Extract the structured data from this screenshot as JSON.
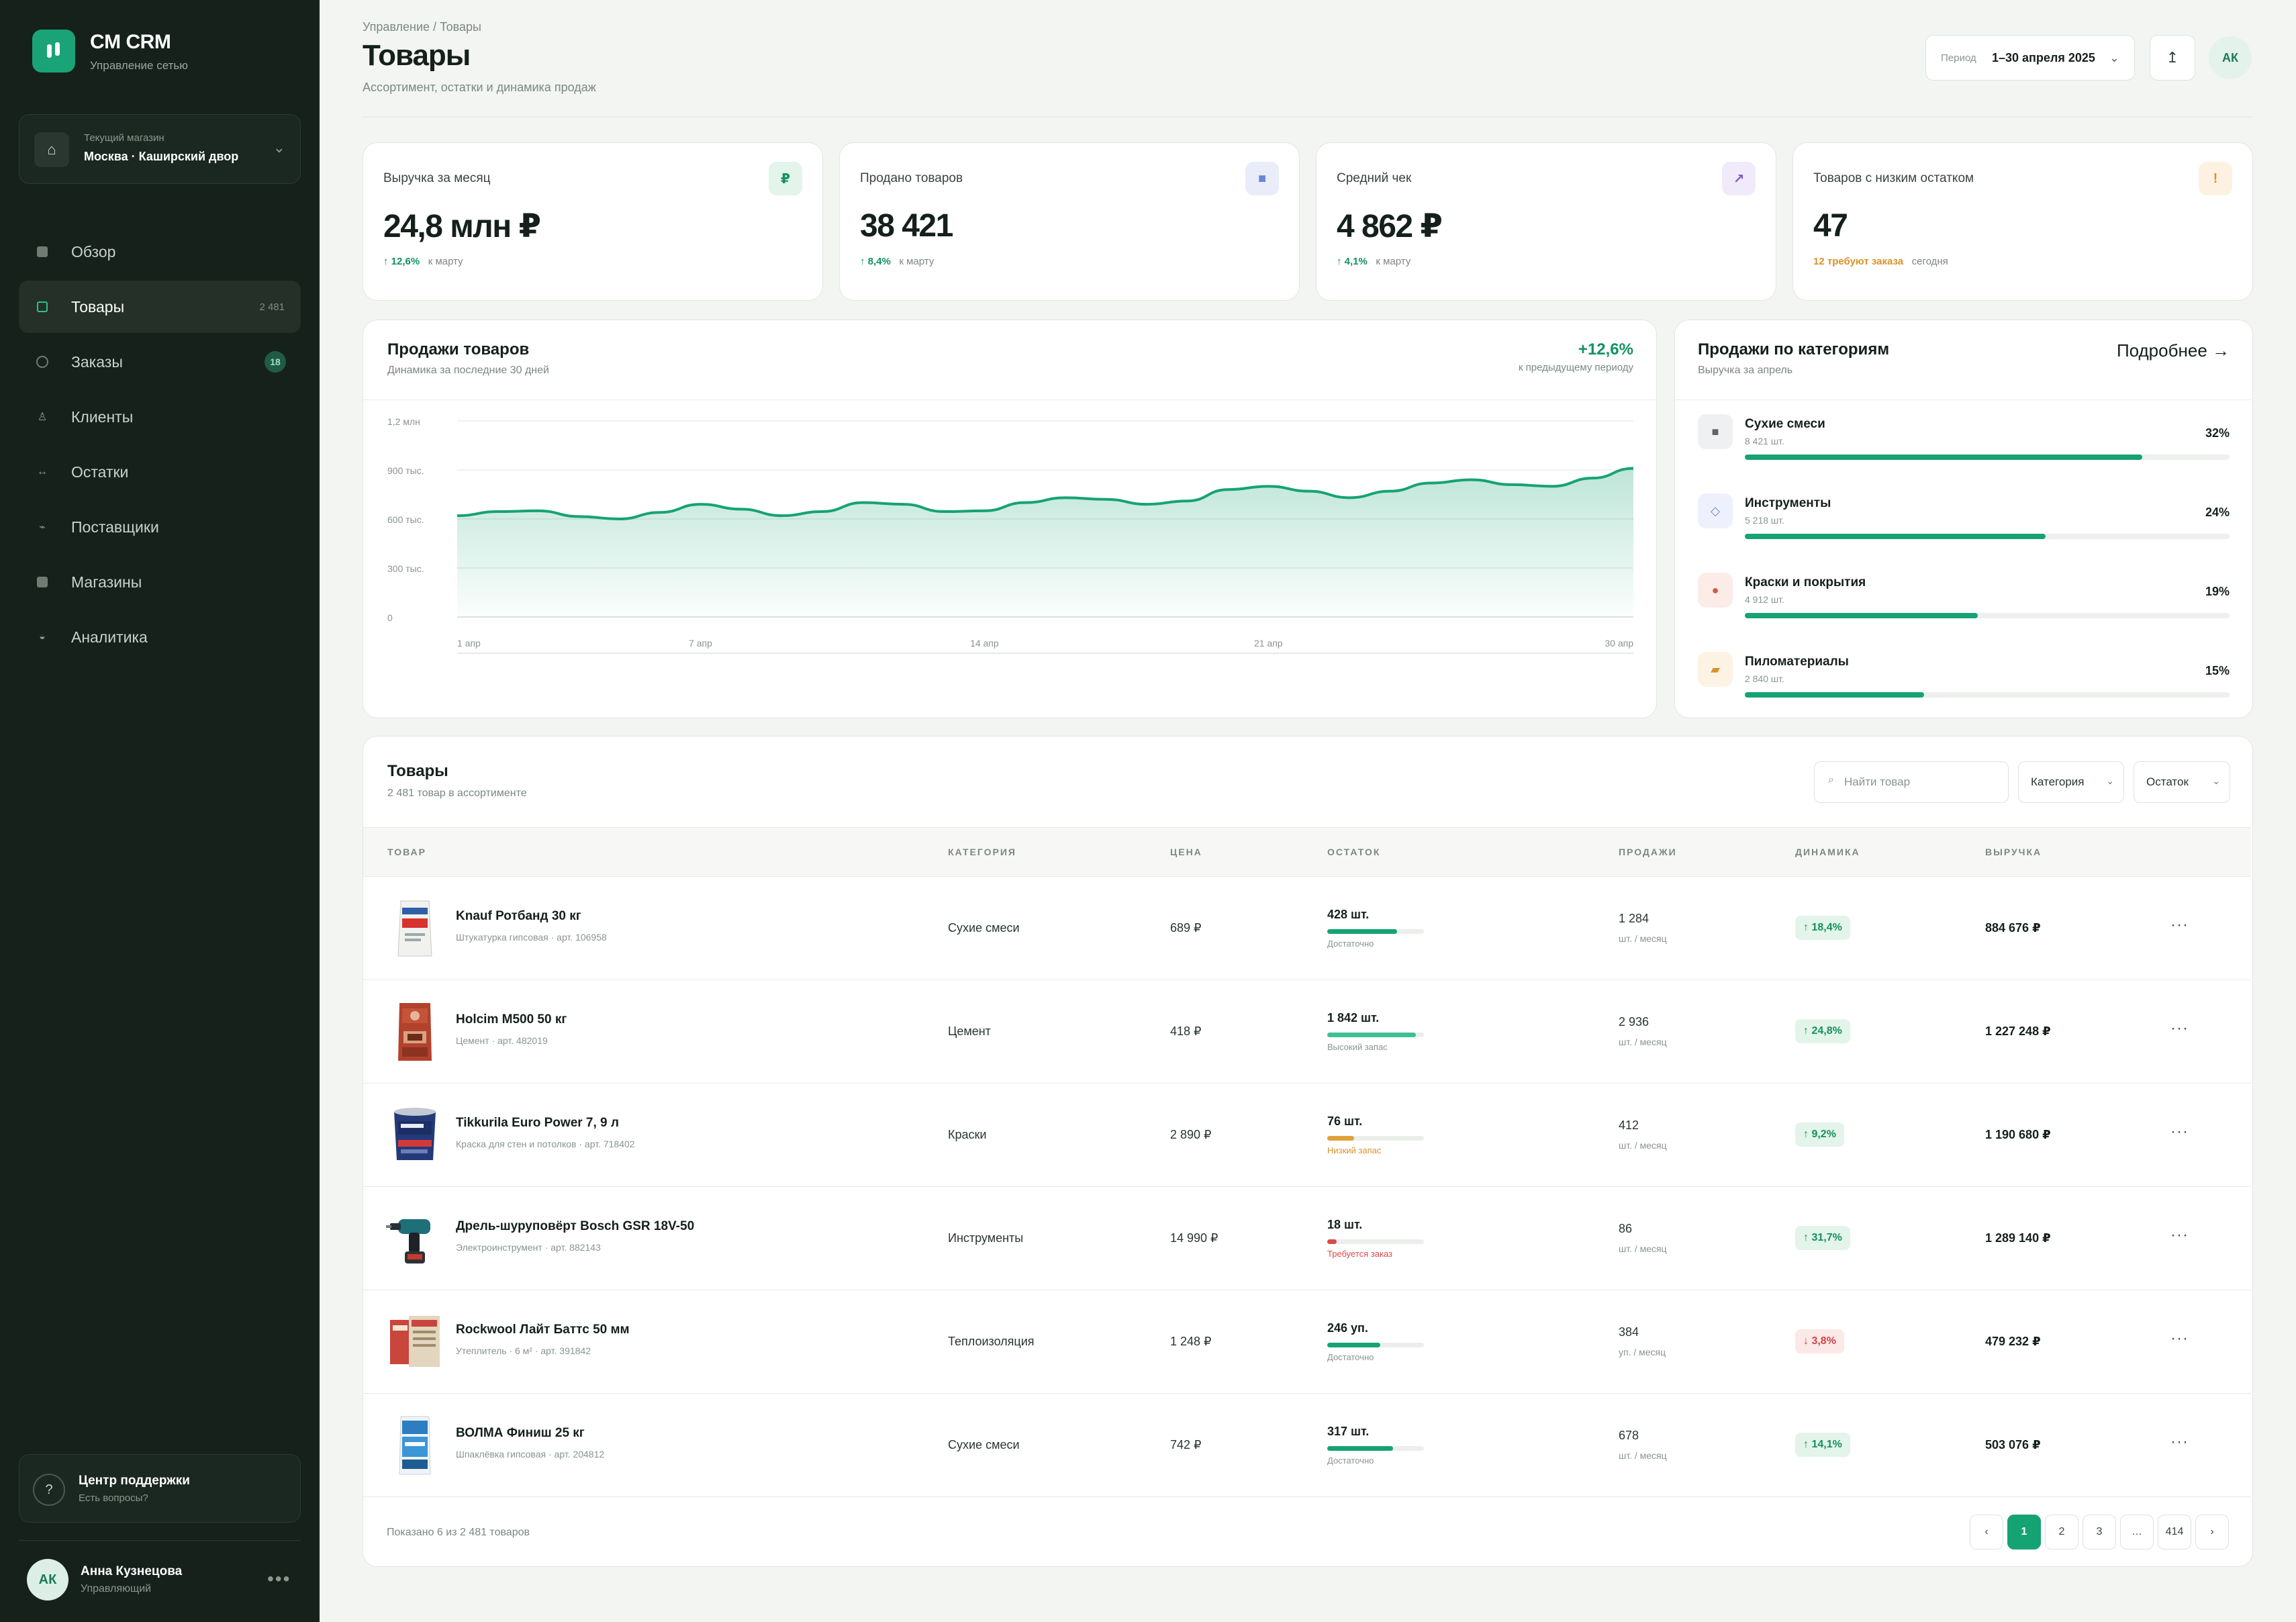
{
  "app": {
    "name": "CM CRM",
    "subtitle": "Управление сетью"
  },
  "store": {
    "label": "Текущий магазин",
    "value": "Москва · Каширский двор"
  },
  "nav": [
    {
      "label": "Обзор"
    },
    {
      "label": "Товары",
      "count": "2 481"
    },
    {
      "label": "Заказы",
      "badge": "18"
    },
    {
      "label": "Клиенты"
    },
    {
      "label": "Остатки"
    },
    {
      "label": "Поставщики"
    },
    {
      "label": "Магазины"
    },
    {
      "label": "Аналитика"
    }
  ],
  "support": {
    "title": "Центр поддержки",
    "subtitle": "Есть вопросы?"
  },
  "user": {
    "initials": "АК",
    "name": "Анна Кузнецова",
    "role": "Управляющий"
  },
  "header": {
    "breadcrumb": "Управление / Товары",
    "title": "Товары",
    "subtitle": "Ассортимент, остатки и динамика продаж",
    "period_label": "Период",
    "period_value": "1–30 апреля 2025",
    "avatar": "АК"
  },
  "kpis": [
    {
      "label": "Выручка за месяц",
      "value": "24,8 млн ₽",
      "delta": "12,6%",
      "delta_note": "к марту",
      "icon": "₽",
      "accent": "#12925f",
      "icon_bg": "#e3f4ea"
    },
    {
      "label": "Продано товаров",
      "value": "38 421",
      "delta": "8,4%",
      "delta_note": "к марту",
      "icon": "■",
      "accent": "#6c84d8",
      "icon_bg": "#e9edfa"
    },
    {
      "label": "Средний чек",
      "value": "4 862 ₽",
      "delta": "4,1%",
      "delta_note": "к марту",
      "icon": "↗",
      "accent": "#7e5cc7",
      "icon_bg": "#f0eafa"
    },
    {
      "label": "Товаров с низким остатком",
      "value": "47",
      "delta": "12 требуют заказа",
      "delta_note": "сегодня",
      "icon": "!",
      "accent": "#d9922b",
      "icon_bg": "#fdf1e2"
    }
  ],
  "sales_chart": {
    "title": "Продажи товаров",
    "subtitle": "Динамика за последние 30 дней",
    "change": "+12,6%",
    "change_note": "к предыдущему периоду"
  },
  "chart_data": {
    "type": "area",
    "title": "Продажи товаров",
    "yticks": [
      "1,2 млн",
      "900 тыс.",
      "600 тыс.",
      "300 тыс.",
      "0"
    ],
    "xticks": [
      "1 апр",
      "7 апр",
      "14 апр",
      "21 апр",
      "30 апр"
    ],
    "ylim": [
      0,
      1200000
    ],
    "x": [
      1,
      2,
      3,
      4,
      5,
      6,
      7,
      8,
      9,
      10,
      11,
      12,
      13,
      14,
      15,
      16,
      17,
      18,
      19,
      20,
      21,
      22,
      23,
      24,
      25,
      26,
      27,
      28,
      29,
      30
    ],
    "values": [
      620000,
      645000,
      650000,
      615000,
      600000,
      640000,
      690000,
      660000,
      620000,
      645000,
      700000,
      690000,
      645000,
      650000,
      700000,
      730000,
      720000,
      690000,
      710000,
      780000,
      800000,
      770000,
      730000,
      770000,
      820000,
      840000,
      810000,
      800000,
      850000,
      910000
    ],
    "grid": true,
    "color": "#16a373"
  },
  "categories": {
    "title": "Продажи по категориям",
    "subtitle": "Выручка за апрель",
    "more": "Подробнее →",
    "items": [
      {
        "name": "Сухие смеси",
        "qty": "8 421 шт.",
        "pct": "32%",
        "fill": 0.82,
        "icon": "■",
        "icon_color": "#5b6573",
        "icon_bg": "#eef0f2"
      },
      {
        "name": "Инструменты",
        "qty": "5 218 шт.",
        "pct": "24%",
        "fill": 0.62,
        "icon": "◇",
        "icon_color": "#6c84d8",
        "icon_bg": "#eef1fb"
      },
      {
        "name": "Краски и покрытия",
        "qty": "4 912 шт.",
        "pct": "19%",
        "fill": 0.48,
        "icon": "●",
        "icon_color": "#c75f43",
        "icon_bg": "#fbece7"
      },
      {
        "name": "Пиломатериалы",
        "qty": "2 840 шт.",
        "pct": "15%",
        "fill": 0.37,
        "icon": "▰",
        "icon_color": "#d9922b",
        "icon_bg": "#fdf3e4"
      }
    ]
  },
  "products": {
    "title": "Товары",
    "subtitle": "2 481 товар в ассортименте",
    "search_placeholder": "Найти товар",
    "filter_category": "Категория",
    "filter_stock": "Остаток",
    "columns": [
      "ТОВАР",
      "КАТЕГОРИЯ",
      "ЦЕНА",
      "ОСТАТОК",
      "ПРОДАЖИ",
      "ДИНАМИКА",
      "ВЫРУЧКА"
    ],
    "rows": [
      {
        "name": "Knauf Ротбанд 30 кг",
        "sub": "Штукатурка гипсовая · арт. 106958",
        "category": "Сухие смеси",
        "price": "689 ₽",
        "stock": "428 шт.",
        "stock_fill": 0.72,
        "stock_color": "#16a373",
        "stock_note": "Достаточно",
        "stock_note_color": "#8a948f",
        "sales": "1 284",
        "sales_unit": "шт. / месяц",
        "dyn": "↑ 18,4%",
        "dyn_type": "pos",
        "revenue": "884 676 ₽",
        "img": "bag-knauf"
      },
      {
        "name": "Holcim M500 50 кг",
        "sub": "Цемент · арт. 482019",
        "category": "Цемент",
        "price": "418 ₽",
        "stock": "1 842 шт.",
        "stock_fill": 0.92,
        "stock_color": "#3fbf94",
        "stock_note": "Высокий запас",
        "stock_note_color": "#8a948f",
        "sales": "2 936",
        "sales_unit": "шт. / месяц",
        "dyn": "↑ 24,8%",
        "dyn_type": "pos",
        "revenue": "1 227 248 ₽",
        "img": "bag-holcim"
      },
      {
        "name": "Tikkurila Euro Power 7, 9 л",
        "sub": "Краска для стен и потолков · арт. 718402",
        "category": "Краски",
        "price": "2 890 ₽",
        "stock": "76 шт.",
        "stock_fill": 0.28,
        "stock_color": "#e0a13c",
        "stock_note": "Низкий запас",
        "stock_note_color": "#d9922b",
        "sales": "412",
        "sales_unit": "шт. / месяц",
        "dyn": "↑ 9,2%",
        "dyn_type": "pos",
        "revenue": "1 190 680 ₽",
        "img": "bucket-tikkurila"
      },
      {
        "name": "Дрель-шуруповёрт Bosch GSR 18V-50",
        "sub": "Электроинструмент · арт. 882143",
        "category": "Инструменты",
        "price": "14 990 ₽",
        "stock": "18 шт.",
        "stock_fill": 0.1,
        "stock_color": "#d94a4a",
        "stock_note": "Требуется заказ",
        "stock_note_color": "#d94a4a",
        "sales": "86",
        "sales_unit": "шт. / месяц",
        "dyn": "↑ 31,7%",
        "dyn_type": "pos",
        "revenue": "1 289 140 ₽",
        "img": "drill-bosch"
      },
      {
        "name": "Rockwool Лайт Баттс 50 мм",
        "sub": "Утеплитель · 6 м² · арт. 391842",
        "category": "Теплоизоляция",
        "price": "1 248 ₽",
        "stock": "246 уп.",
        "stock_fill": 0.55,
        "stock_color": "#16a373",
        "stock_note": "Достаточно",
        "stock_note_color": "#8a948f",
        "sales": "384",
        "sales_unit": "уп. / месяц",
        "dyn": "↓ 3,8%",
        "dyn_type": "neg",
        "revenue": "479 232 ₽",
        "img": "pack-rockwool"
      },
      {
        "name": "ВОЛМА Финиш 25 кг",
        "sub": "Шпаклёвка гипсовая · арт. 204812",
        "category": "Сухие смеси",
        "price": "742 ₽",
        "stock": "317 шт.",
        "stock_fill": 0.68,
        "stock_color": "#16a373",
        "stock_note": "Достаточно",
        "stock_note_color": "#8a948f",
        "sales": "678",
        "sales_unit": "шт. / месяц",
        "dyn": "↑ 14,1%",
        "dyn_type": "pos",
        "revenue": "503 076 ₽",
        "img": "bag-volma"
      }
    ],
    "footer": "Показано 6 из 2 481 товаров",
    "pages": [
      "‹",
      "1",
      "2",
      "3",
      "…",
      "414",
      "›"
    ],
    "current_page": "1"
  }
}
